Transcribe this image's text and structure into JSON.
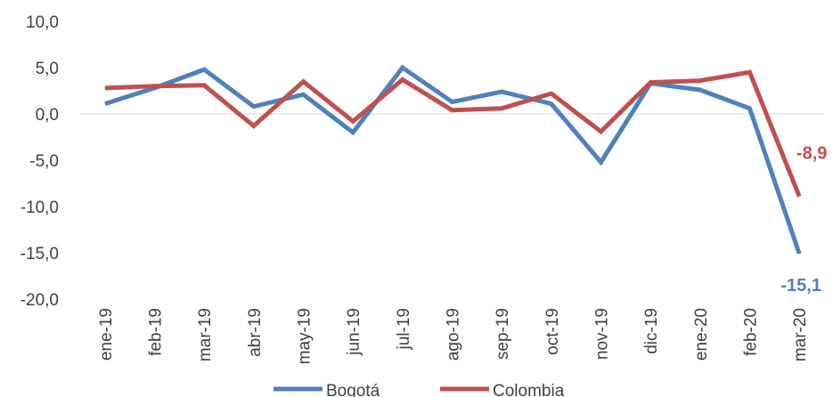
{
  "chart_data": {
    "type": "line",
    "categories": [
      "ene-19",
      "feb-19",
      "mar-19",
      "abr-19",
      "may-19",
      "jun-19",
      "jul-19",
      "ago-19",
      "sep-19",
      "oct-19",
      "nov-19",
      "dic-19",
      "ene-20",
      "feb-20",
      "mar-20"
    ],
    "series": [
      {
        "name": "Bogotá",
        "color": "#4F81BD",
        "values": [
          1.1,
          2.8,
          4.8,
          0.8,
          2.1,
          -2.0,
          5.0,
          1.3,
          2.4,
          1.1,
          -5.2,
          3.3,
          2.6,
          0.6,
          -15.1
        ]
      },
      {
        "name": "Colombia",
        "color": "#C0504D",
        "values": [
          2.8,
          3.0,
          3.1,
          -1.3,
          3.5,
          -0.8,
          3.7,
          0.4,
          0.6,
          2.2,
          -1.9,
          3.4,
          3.6,
          4.5,
          -8.9
        ]
      }
    ],
    "yticks": [
      "10,0",
      "5,0",
      "0,0",
      "-5,0",
      "-10,0",
      "-15,0",
      "-20,0"
    ],
    "ylim": [
      -20,
      10
    ],
    "data_labels": [
      {
        "series": "Colombia",
        "text": "-8,9"
      },
      {
        "series": "Bogotá",
        "text": "-15,1"
      }
    ],
    "legend": {
      "position": "bottom"
    }
  }
}
